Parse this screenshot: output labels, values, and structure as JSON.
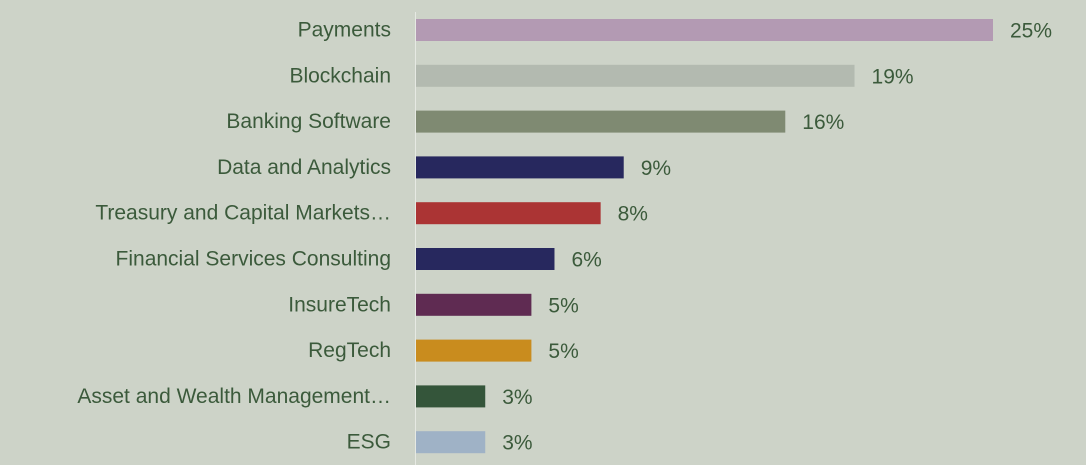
{
  "chart_data": {
    "type": "barh",
    "categories": [
      "Payments",
      "Blockchain",
      "Banking Software",
      "Data and Analytics",
      "Treasury and Capital Markets…",
      "Financial Services Consulting",
      "InsureTech",
      "RegTech",
      "Asset and Wealth Management…",
      "ESG"
    ],
    "values": [
      25,
      19,
      16,
      9,
      8,
      6,
      5,
      5,
      3,
      3
    ],
    "value_labels": [
      "25%",
      "19%",
      "16%",
      "9%",
      "8%",
      "6%",
      "5%",
      "5%",
      "3%",
      "3%"
    ],
    "colors": [
      "#b39ab3",
      "#b3bab0",
      "#7f8a72",
      "#27285e",
      "#ab3434",
      "#27285e",
      "#5f2b52",
      "#c98c1e",
      "#34553a",
      "#9fb2c6"
    ]
  }
}
